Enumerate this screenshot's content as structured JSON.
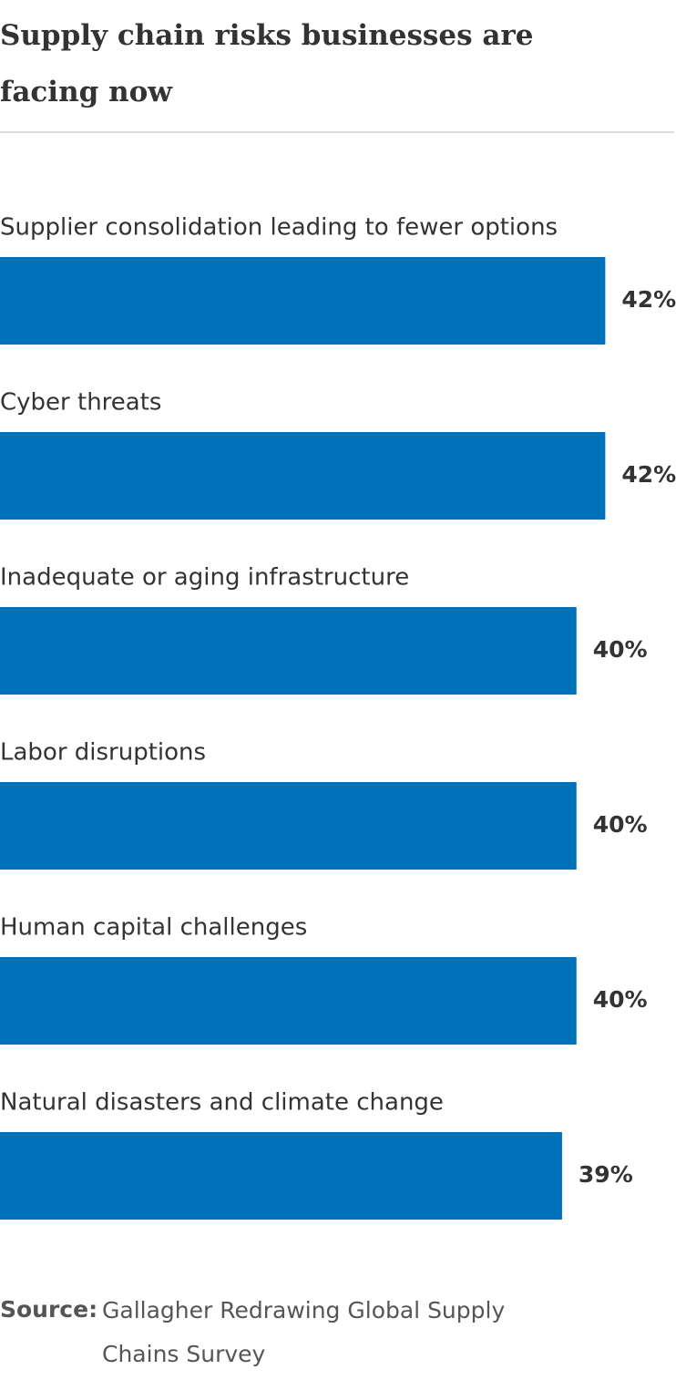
{
  "chart_data": {
    "type": "bar",
    "orientation": "horizontal",
    "title": "Supply chain risks businesses are facing now",
    "categories": [
      "Supplier consolidation leading to fewer options",
      "Cyber threats",
      "Inadequate or aging infrastructure",
      "Labor disruptions",
      "Human capital challenges",
      "Natural disasters and climate change"
    ],
    "values": [
      42,
      42,
      40,
      40,
      40,
      39
    ],
    "value_labels": [
      "42%",
      "42%",
      "40%",
      "40%",
      "40%",
      "39%"
    ],
    "color": "#0072bc",
    "xlim": [
      0,
      44
    ],
    "source_label": "Source:",
    "source": "Gallagher Redrawing Global Supply Chains Survey"
  }
}
